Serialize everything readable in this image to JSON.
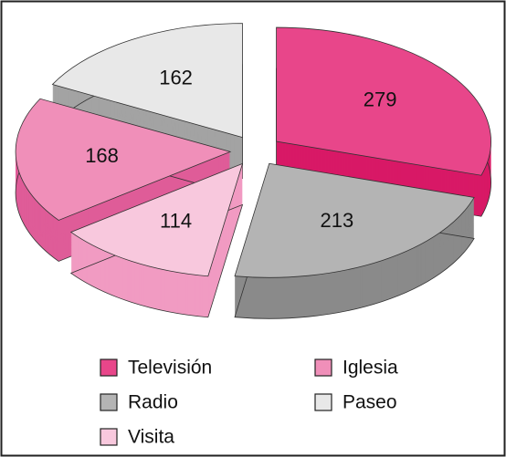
{
  "chart_data": {
    "type": "pie",
    "categories": [
      "Televisión",
      "Radio",
      "Visita",
      "Iglesia",
      "Paseo"
    ],
    "values": [
      279,
      213,
      114,
      168,
      162
    ],
    "colors": [
      "#e8468a",
      "#b4b4b4",
      "#f8c8dd",
      "#f08fb9",
      "#e8e8e8"
    ],
    "side_colors": [
      "#d81966",
      "#8a8a8a",
      "#f19bc2",
      "#df5c98",
      "#a3a3a3"
    ]
  }
}
